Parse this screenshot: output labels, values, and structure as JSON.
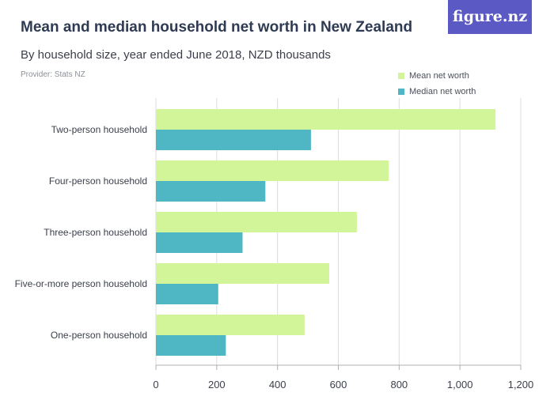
{
  "header": {
    "title": "Mean and median household net worth in New Zealand",
    "subtitle": "By household size, year ended June 2018, NZD thousands",
    "provider": "Provider: Stats NZ",
    "brand": "figure.nz"
  },
  "colors": {
    "mean": "#d3f59a",
    "median": "#4fb7c4",
    "brand": "#5b59c3",
    "grid": "#dcdcdc"
  },
  "chart_data": {
    "type": "bar",
    "orientation": "horizontal",
    "title": "Mean and median household net worth in New Zealand",
    "subtitle": "By household size, year ended June 2018, NZD thousands",
    "categories": [
      "Two-person household",
      "Four-person household",
      "Three-person household",
      "Five-or-more person household",
      "One-person household"
    ],
    "series": [
      {
        "name": "Mean net worth",
        "values": [
          1117,
          766,
          661,
          570,
          489
        ]
      },
      {
        "name": "Median net worth",
        "values": [
          510,
          360,
          285,
          205,
          230
        ]
      }
    ],
    "xlim": [
      0,
      1200
    ],
    "xticks": [
      0,
      200,
      400,
      600,
      800,
      1000,
      1200
    ],
    "xtick_labels": [
      "0",
      "200",
      "400",
      "600",
      "800",
      "1,000",
      "1,200"
    ],
    "grid": "vertical",
    "legend": "top-right"
  }
}
